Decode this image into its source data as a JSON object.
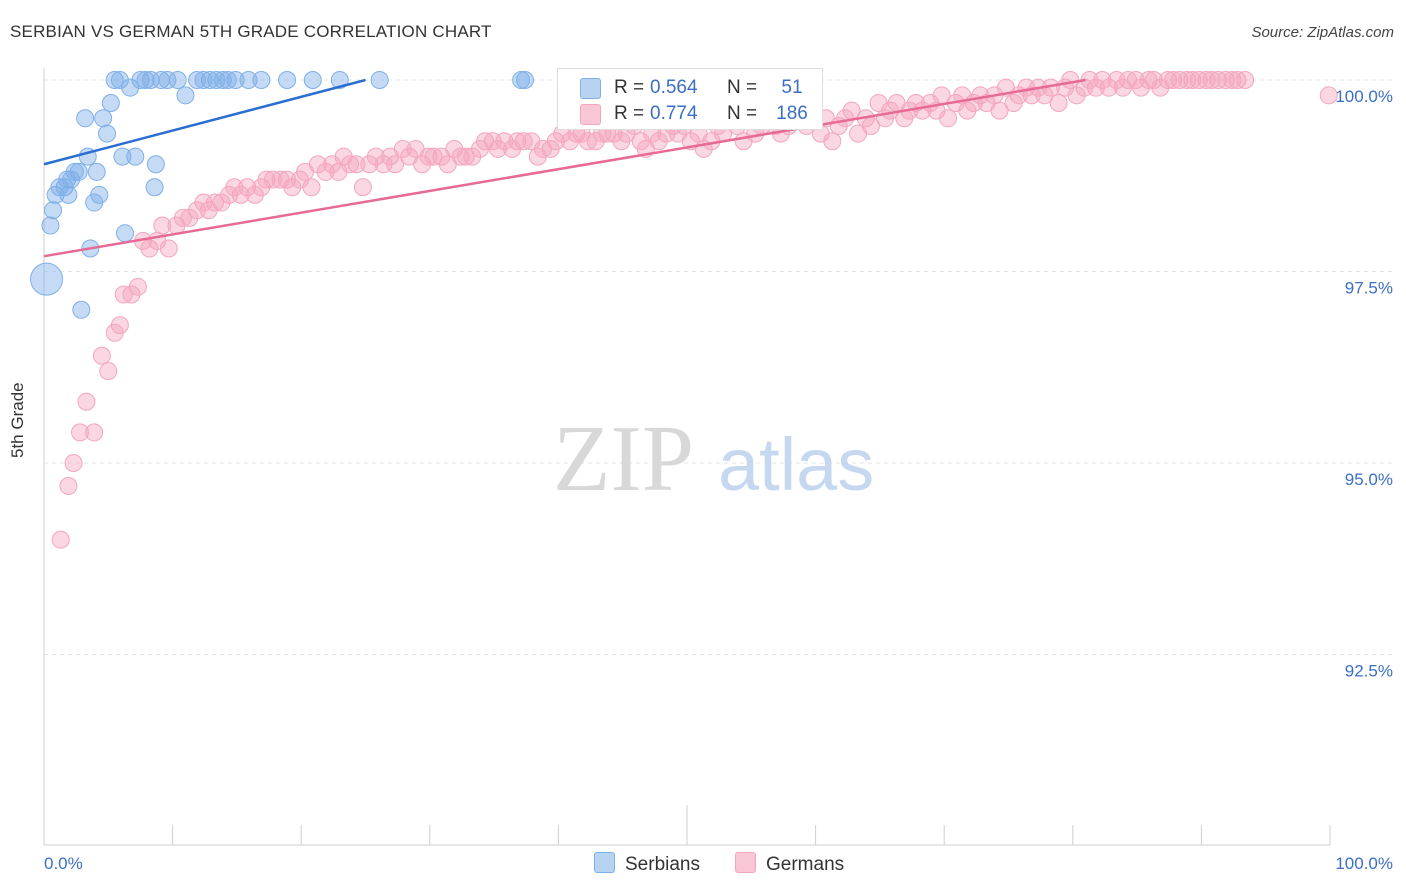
{
  "title": "SERBIAN VS GERMAN 5TH GRADE CORRELATION CHART",
  "source": "Source: ZipAtlas.com",
  "watermark": {
    "zip": "ZIP",
    "atlas": "atlas"
  },
  "colors": {
    "serbians": "#7fb0e8",
    "germans": "#f4a6bf",
    "serbians_line": "#2a6ed1",
    "germans_line": "#e76a96",
    "tick_text": "#3b6fc4"
  },
  "legend": {
    "serbians": {
      "r_label": "R =",
      "r_value": "0.564",
      "n_label": "N =",
      "n_value": "51"
    },
    "germans": {
      "r_label": "R =",
      "r_value": "0.774",
      "n_label": "N =",
      "n_value": "186"
    }
  },
  "bottom_legend": {
    "serbians": "Serbians",
    "germans": "Germans"
  },
  "chart_data": {
    "type": "scatter",
    "title": "SERBIAN VS GERMAN 5TH GRADE CORRELATION CHART",
    "xlabel": "",
    "ylabel": "5th Grade",
    "xlim": [
      0,
      100
    ],
    "ylim": [
      90.0,
      100.3
    ],
    "x_tick_labels": [
      "0.0%",
      "100.0%"
    ],
    "y_ticks": [
      92.5,
      95.0,
      97.5,
      100.0
    ],
    "y_tick_labels": [
      "92.5%",
      "95.0%",
      "97.5%",
      "100.0%"
    ],
    "series": [
      {
        "name": "Serbians",
        "r": 0.564,
        "n": 51,
        "trend": {
          "x": [
            0,
            25
          ],
          "y": [
            98.9,
            100.0
          ]
        },
        "points": [
          [
            0.2,
            97.4
          ],
          [
            0.5,
            98.1
          ],
          [
            0.7,
            98.3
          ],
          [
            0.9,
            98.5
          ],
          [
            1.2,
            98.6
          ],
          [
            1.6,
            98.6
          ],
          [
            1.8,
            98.7
          ],
          [
            1.9,
            98.5
          ],
          [
            2.1,
            98.7
          ],
          [
            2.4,
            98.8
          ],
          [
            2.7,
            98.8
          ],
          [
            2.9,
            97.0
          ],
          [
            3.2,
            99.5
          ],
          [
            3.4,
            99.0
          ],
          [
            3.6,
            97.8
          ],
          [
            3.9,
            98.4
          ],
          [
            4.1,
            98.8
          ],
          [
            4.3,
            98.5
          ],
          [
            4.6,
            99.5
          ],
          [
            4.9,
            99.3
          ],
          [
            5.2,
            99.7
          ],
          [
            5.5,
            100.0
          ],
          [
            5.9,
            100.0
          ],
          [
            6.1,
            99.0
          ],
          [
            6.3,
            98.0
          ],
          [
            6.7,
            99.9
          ],
          [
            7.1,
            99.0
          ],
          [
            7.5,
            100.0
          ],
          [
            7.9,
            100.0
          ],
          [
            8.3,
            100.0
          ],
          [
            8.6,
            98.6
          ],
          [
            8.7,
            98.9
          ],
          [
            9.1,
            100.0
          ],
          [
            9.6,
            100.0
          ],
          [
            10.4,
            100.0
          ],
          [
            11.0,
            99.8
          ],
          [
            11.9,
            100.0
          ],
          [
            12.4,
            100.0
          ],
          [
            12.9,
            100.0
          ],
          [
            13.4,
            100.0
          ],
          [
            13.9,
            100.0
          ],
          [
            14.3,
            100.0
          ],
          [
            14.9,
            100.0
          ],
          [
            15.9,
            100.0
          ],
          [
            16.9,
            100.0
          ],
          [
            18.9,
            100.0
          ],
          [
            20.9,
            100.0
          ],
          [
            23.0,
            100.0
          ],
          [
            26.1,
            100.0
          ],
          [
            37.1,
            100.0
          ],
          [
            37.4,
            100.0
          ]
        ]
      },
      {
        "name": "Germans",
        "r": 0.774,
        "n": 186,
        "trend": {
          "x": [
            0,
            81
          ],
          "y": [
            97.7,
            100.0
          ]
        },
        "points": [
          [
            1.3,
            94.0
          ],
          [
            1.9,
            94.7
          ],
          [
            2.3,
            95.0
          ],
          [
            2.8,
            95.4
          ],
          [
            3.3,
            95.8
          ],
          [
            3.9,
            95.4
          ],
          [
            4.5,
            96.4
          ],
          [
            5.0,
            96.2
          ],
          [
            5.5,
            96.7
          ],
          [
            5.9,
            96.8
          ],
          [
            6.2,
            97.2
          ],
          [
            6.8,
            97.2
          ],
          [
            7.3,
            97.3
          ],
          [
            7.7,
            97.9
          ],
          [
            8.2,
            97.8
          ],
          [
            8.8,
            97.9
          ],
          [
            9.2,
            98.1
          ],
          [
            9.7,
            97.8
          ],
          [
            10.3,
            98.1
          ],
          [
            10.8,
            98.2
          ],
          [
            11.3,
            98.2
          ],
          [
            11.9,
            98.3
          ],
          [
            12.4,
            98.4
          ],
          [
            12.8,
            98.3
          ],
          [
            13.3,
            98.4
          ],
          [
            13.8,
            98.4
          ],
          [
            14.4,
            98.5
          ],
          [
            14.8,
            98.6
          ],
          [
            15.3,
            98.5
          ],
          [
            15.8,
            98.6
          ],
          [
            16.4,
            98.5
          ],
          [
            16.9,
            98.6
          ],
          [
            17.3,
            98.7
          ],
          [
            17.8,
            98.7
          ],
          [
            18.4,
            98.7
          ],
          [
            18.9,
            98.7
          ],
          [
            19.3,
            98.6
          ],
          [
            19.9,
            98.7
          ],
          [
            20.3,
            98.8
          ],
          [
            20.8,
            98.6
          ],
          [
            21.3,
            98.9
          ],
          [
            21.9,
            98.8
          ],
          [
            22.4,
            98.9
          ],
          [
            22.9,
            98.8
          ],
          [
            23.3,
            99.0
          ],
          [
            23.8,
            98.9
          ],
          [
            24.3,
            98.9
          ],
          [
            24.8,
            98.6
          ],
          [
            25.3,
            98.9
          ],
          [
            25.8,
            99.0
          ],
          [
            26.4,
            98.9
          ],
          [
            26.9,
            99.0
          ],
          [
            27.3,
            98.9
          ],
          [
            27.9,
            99.1
          ],
          [
            28.4,
            99.0
          ],
          [
            28.9,
            99.1
          ],
          [
            29.4,
            98.9
          ],
          [
            29.9,
            99.0
          ],
          [
            30.3,
            99.0
          ],
          [
            30.9,
            99.0
          ],
          [
            31.4,
            98.9
          ],
          [
            31.9,
            99.1
          ],
          [
            32.4,
            99.0
          ],
          [
            32.8,
            99.0
          ],
          [
            33.3,
            99.0
          ],
          [
            33.9,
            99.1
          ],
          [
            34.3,
            99.2
          ],
          [
            34.9,
            99.2
          ],
          [
            35.3,
            99.1
          ],
          [
            35.8,
            99.2
          ],
          [
            36.4,
            99.1
          ],
          [
            36.8,
            99.2
          ],
          [
            37.3,
            99.2
          ],
          [
            37.9,
            99.2
          ],
          [
            38.4,
            99.0
          ],
          [
            38.8,
            99.1
          ],
          [
            39.4,
            99.1
          ],
          [
            39.8,
            99.2
          ],
          [
            40.3,
            99.3
          ],
          [
            40.9,
            99.2
          ],
          [
            41.4,
            99.3
          ],
          [
            41.8,
            99.3
          ],
          [
            42.3,
            99.2
          ],
          [
            42.9,
            99.2
          ],
          [
            43.4,
            99.3
          ],
          [
            43.8,
            99.3
          ],
          [
            44.3,
            99.3
          ],
          [
            44.9,
            99.2
          ],
          [
            45.3,
            99.3
          ],
          [
            45.9,
            99.4
          ],
          [
            46.4,
            99.2
          ],
          [
            46.8,
            99.1
          ],
          [
            47.3,
            99.3
          ],
          [
            47.8,
            99.2
          ],
          [
            48.4,
            99.3
          ],
          [
            48.9,
            99.4
          ],
          [
            49.3,
            99.3
          ],
          [
            49.8,
            99.4
          ],
          [
            50.3,
            99.2
          ],
          [
            50.9,
            99.3
          ],
          [
            51.3,
            99.1
          ],
          [
            51.9,
            99.2
          ],
          [
            52.4,
            99.4
          ],
          [
            52.8,
            99.3
          ],
          [
            53.3,
            99.5
          ],
          [
            53.9,
            99.4
          ],
          [
            54.4,
            99.2
          ],
          [
            54.8,
            99.5
          ],
          [
            55.3,
            99.3
          ],
          [
            55.8,
            99.4
          ],
          [
            56.4,
            99.5
          ],
          [
            56.9,
            99.4
          ],
          [
            57.3,
            99.3
          ],
          [
            57.9,
            99.4
          ],
          [
            58.4,
            99.5
          ],
          [
            58.9,
            99.6
          ],
          [
            59.3,
            99.4
          ],
          [
            59.8,
            99.5
          ],
          [
            60.4,
            99.3
          ],
          [
            60.8,
            99.5
          ],
          [
            61.3,
            99.2
          ],
          [
            61.8,
            99.4
          ],
          [
            62.3,
            99.5
          ],
          [
            62.8,
            99.6
          ],
          [
            63.3,
            99.3
          ],
          [
            63.9,
            99.5
          ],
          [
            64.3,
            99.4
          ],
          [
            64.9,
            99.7
          ],
          [
            65.4,
            99.5
          ],
          [
            65.8,
            99.6
          ],
          [
            66.3,
            99.7
          ],
          [
            66.9,
            99.5
          ],
          [
            67.3,
            99.6
          ],
          [
            67.8,
            99.7
          ],
          [
            68.3,
            99.6
          ],
          [
            68.9,
            99.7
          ],
          [
            69.4,
            99.6
          ],
          [
            69.8,
            99.8
          ],
          [
            70.3,
            99.5
          ],
          [
            70.9,
            99.7
          ],
          [
            71.4,
            99.8
          ],
          [
            71.8,
            99.6
          ],
          [
            72.3,
            99.7
          ],
          [
            72.8,
            99.8
          ],
          [
            73.3,
            99.7
          ],
          [
            73.9,
            99.8
          ],
          [
            74.3,
            99.6
          ],
          [
            74.8,
            99.9
          ],
          [
            75.4,
            99.7
          ],
          [
            75.8,
            99.8
          ],
          [
            76.4,
            99.9
          ],
          [
            76.8,
            99.8
          ],
          [
            77.3,
            99.9
          ],
          [
            77.8,
            99.8
          ],
          [
            78.3,
            99.9
          ],
          [
            78.9,
            99.7
          ],
          [
            79.4,
            99.9
          ],
          [
            79.8,
            100.0
          ],
          [
            80.3,
            99.8
          ],
          [
            80.9,
            99.9
          ],
          [
            81.3,
            100.0
          ],
          [
            81.8,
            99.9
          ],
          [
            82.3,
            100.0
          ],
          [
            82.8,
            99.9
          ],
          [
            83.4,
            100.0
          ],
          [
            83.9,
            99.9
          ],
          [
            84.3,
            100.0
          ],
          [
            84.9,
            100.0
          ],
          [
            85.3,
            99.9
          ],
          [
            85.9,
            100.0
          ],
          [
            86.3,
            100.0
          ],
          [
            86.8,
            99.9
          ],
          [
            87.4,
            100.0
          ],
          [
            87.8,
            100.0
          ],
          [
            88.3,
            100.0
          ],
          [
            88.9,
            100.0
          ],
          [
            89.3,
            100.0
          ],
          [
            89.8,
            100.0
          ],
          [
            90.4,
            100.0
          ],
          [
            90.8,
            100.0
          ],
          [
            91.3,
            100.0
          ],
          [
            91.9,
            100.0
          ],
          [
            92.4,
            100.0
          ],
          [
            92.8,
            100.0
          ],
          [
            93.4,
            100.0
          ],
          [
            99.9,
            99.8
          ]
        ]
      }
    ]
  }
}
